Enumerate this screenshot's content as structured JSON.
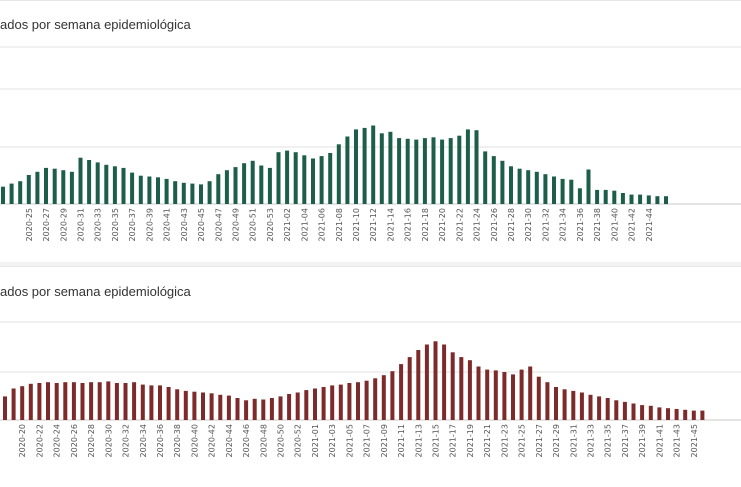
{
  "charts": [
    {
      "title": "ados por semana epidemiológica",
      "color": "#1d5e4a"
    },
    {
      "title": "ados por semana epidemiológica",
      "color": "#7d2a2a"
    }
  ],
  "chart_data": [
    {
      "type": "bar",
      "title": "ados por semana epidemiológica",
      "grid": true,
      "categories": [
        "2020-22",
        "2020-23",
        "2020-24",
        "2020-25",
        "2020-26",
        "2020-27",
        "2020-28",
        "2020-29",
        "2020-30",
        "2020-31",
        "2020-32",
        "2020-33",
        "2020-34",
        "2020-35",
        "2020-36",
        "2020-37",
        "2020-38",
        "2020-39",
        "2020-40",
        "2020-41",
        "2020-42",
        "2020-43",
        "2020-44",
        "2020-45",
        "2020-46",
        "2020-47",
        "2020-48",
        "2020-49",
        "2020-50",
        "2020-51",
        "2020-52",
        "2020-53",
        "2021-01",
        "2021-02",
        "2021-03",
        "2021-04",
        "2021-05",
        "2021-06",
        "2021-07",
        "2021-08",
        "2021-09",
        "2021-10",
        "2021-11",
        "2021-12",
        "2021-13",
        "2021-14",
        "2021-15",
        "2021-16",
        "2021-17",
        "2021-18",
        "2021-19",
        "2021-20",
        "2021-21",
        "2021-22",
        "2021-23",
        "2021-24",
        "2021-25",
        "2021-26",
        "2021-27",
        "2021-28",
        "2021-29",
        "2021-30",
        "2021-31",
        "2021-32",
        "2021-33",
        "2021-34",
        "2021-35",
        "2021-36",
        "2021-37",
        "2021-38",
        "2021-39",
        "2021-40",
        "2021-41",
        "2021-42",
        "2021-43",
        "2021-44",
        "2021-45",
        "2021-46"
      ],
      "tick_labels": [
        "2020-25",
        "2020-27",
        "2020-29",
        "2020-31",
        "2020-33",
        "2020-35",
        "2020-37",
        "2020-39",
        "2020-41",
        "2020-43",
        "2020-45",
        "2020-47",
        "2020-49",
        "2020-51",
        "2020-53",
        "2021-02",
        "2021-04",
        "2021-06",
        "2021-08",
        "2021-10",
        "2021-12",
        "2021-14",
        "2021-16",
        "2021-18",
        "2021-20",
        "2021-22",
        "2021-24",
        "2021-26",
        "2021-28",
        "2021-30",
        "2021-32",
        "2021-34",
        "2021-36",
        "2021-38",
        "2021-40",
        "2021-42",
        "2021-44"
      ],
      "values": [
        0.22,
        0.26,
        0.29,
        0.37,
        0.41,
        0.46,
        0.45,
        0.43,
        0.41,
        0.59,
        0.56,
        0.53,
        0.5,
        0.48,
        0.46,
        0.4,
        0.36,
        0.35,
        0.34,
        0.32,
        0.29,
        0.27,
        0.26,
        0.25,
        0.29,
        0.38,
        0.43,
        0.47,
        0.52,
        0.55,
        0.49,
        0.46,
        0.66,
        0.68,
        0.66,
        0.62,
        0.58,
        0.61,
        0.65,
        0.76,
        0.86,
        0.95,
        0.97,
        1.0,
        0.9,
        0.92,
        0.84,
        0.83,
        0.82,
        0.84,
        0.85,
        0.82,
        0.84,
        0.87,
        0.95,
        0.94,
        0.67,
        0.61,
        0.55,
        0.48,
        0.45,
        0.43,
        0.41,
        0.38,
        0.35,
        0.32,
        0.31,
        0.2,
        0.44,
        0.18,
        0.18,
        0.17,
        0.14,
        0.12,
        0.12,
        0.11,
        0.1,
        0.1
      ],
      "ylim": [
        0,
        2.0
      ]
    },
    {
      "type": "bar",
      "title": "ados por semana epidemiológica",
      "grid": true,
      "categories": [
        "2020-18",
        "2020-19",
        "2020-20",
        "2020-21",
        "2020-22",
        "2020-23",
        "2020-24",
        "2020-25",
        "2020-26",
        "2020-27",
        "2020-28",
        "2020-29",
        "2020-30",
        "2020-31",
        "2020-32",
        "2020-33",
        "2020-34",
        "2020-35",
        "2020-36",
        "2020-37",
        "2020-38",
        "2020-39",
        "2020-40",
        "2020-41",
        "2020-42",
        "2020-43",
        "2020-44",
        "2020-45",
        "2020-46",
        "2020-47",
        "2020-48",
        "2020-49",
        "2020-50",
        "2020-51",
        "2020-52",
        "2020-53",
        "2021-01",
        "2021-02",
        "2021-03",
        "2021-04",
        "2021-05",
        "2021-06",
        "2021-07",
        "2021-08",
        "2021-09",
        "2021-10",
        "2021-11",
        "2021-12",
        "2021-13",
        "2021-14",
        "2021-15",
        "2021-16",
        "2021-17",
        "2021-18",
        "2021-19",
        "2021-20",
        "2021-21",
        "2021-22",
        "2021-23",
        "2021-24",
        "2021-25",
        "2021-26",
        "2021-27",
        "2021-28",
        "2021-29",
        "2021-30",
        "2021-31",
        "2021-32",
        "2021-33",
        "2021-34",
        "2021-35",
        "2021-36",
        "2021-37",
        "2021-38",
        "2021-39",
        "2021-40",
        "2021-41",
        "2021-42",
        "2021-43",
        "2021-44",
        "2021-45",
        "2021-46"
      ],
      "tick_labels": [
        "2020-20",
        "2020-22",
        "2020-24",
        "2020-26",
        "2020-28",
        "2020-30",
        "2020-32",
        "2020-34",
        "2020-36",
        "2020-38",
        "2020-40",
        "2020-42",
        "2020-44",
        "2020-46",
        "2020-48",
        "2020-50",
        "2020-52",
        "2021-01",
        "2021-03",
        "2021-05",
        "2021-07",
        "2021-09",
        "2021-11",
        "2021-13",
        "2021-15",
        "2021-17",
        "2021-19",
        "2021-21",
        "2021-23",
        "2021-25",
        "2021-27",
        "2021-29",
        "2021-31",
        "2021-33",
        "2021-35",
        "2021-37",
        "2021-39",
        "2021-41",
        "2021-43",
        "2021-45"
      ],
      "values": [
        0.3,
        0.4,
        0.43,
        0.46,
        0.47,
        0.48,
        0.47,
        0.48,
        0.48,
        0.47,
        0.48,
        0.48,
        0.49,
        0.47,
        0.47,
        0.48,
        0.45,
        0.44,
        0.44,
        0.42,
        0.39,
        0.37,
        0.36,
        0.35,
        0.34,
        0.32,
        0.31,
        0.28,
        0.25,
        0.27,
        0.26,
        0.28,
        0.3,
        0.33,
        0.35,
        0.38,
        0.4,
        0.42,
        0.44,
        0.45,
        0.47,
        0.48,
        0.5,
        0.53,
        0.57,
        0.62,
        0.71,
        0.8,
        0.89,
        0.96,
        1.0,
        0.96,
        0.86,
        0.8,
        0.76,
        0.68,
        0.64,
        0.63,
        0.61,
        0.58,
        0.64,
        0.68,
        0.55,
        0.48,
        0.42,
        0.39,
        0.37,
        0.35,
        0.32,
        0.3,
        0.28,
        0.25,
        0.23,
        0.21,
        0.19,
        0.18,
        0.16,
        0.15,
        0.14,
        0.13,
        0.12,
        0.12
      ],
      "ylim": [
        0,
        1.36
      ]
    }
  ]
}
